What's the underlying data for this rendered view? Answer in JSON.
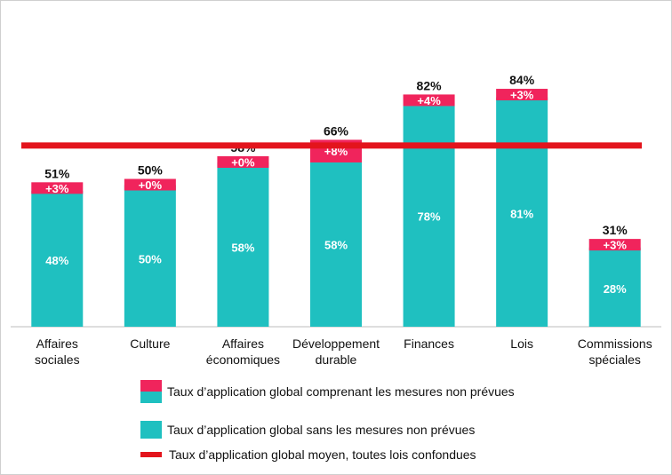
{
  "chart_data": {
    "type": "bar",
    "stacked": true,
    "categories": [
      [
        "Affaires",
        "sociales"
      ],
      [
        "Culture"
      ],
      [
        "Affaires",
        "économiques"
      ],
      [
        "Développement",
        "durable"
      ],
      [
        "Finances"
      ],
      [
        "Lois"
      ],
      [
        "Commissions",
        "spéciales"
      ]
    ],
    "series": [
      {
        "name": "Taux d’application global sans les mesures non prévues",
        "values": [
          48,
          50,
          58,
          58,
          78,
          81,
          28
        ],
        "labels": [
          "48%",
          "50%",
          "58%",
          "58%",
          "78%",
          "81%",
          "28%"
        ],
        "color": "#1fc0c0"
      },
      {
        "name": "Taux d’application global comprenant les mesures non prévues",
        "values": [
          3,
          0,
          0,
          8,
          4,
          3,
          3
        ],
        "labels": [
          "+3%",
          "+0%",
          "+0%",
          "+8%",
          "+4%",
          "+3%",
          "+3%"
        ],
        "color": "#f0245c"
      }
    ],
    "totals": [
      "51%",
      "50%",
      "58%",
      "66%",
      "82%",
      "84%",
      "31%"
    ],
    "reference_line": {
      "name": "Taux d’application global moyen, toutes lois confondues",
      "value": 64,
      "color": "#e3141c"
    },
    "ylim": [
      0,
      100
    ],
    "grid": false,
    "legend_position": "bottom"
  },
  "legend": {
    "combo": "Taux d’application global comprenant les mesures non prévues",
    "base": "Taux d’application global sans les mesures non prévues",
    "line": "Taux d’application global moyen, toutes lois confondues"
  }
}
